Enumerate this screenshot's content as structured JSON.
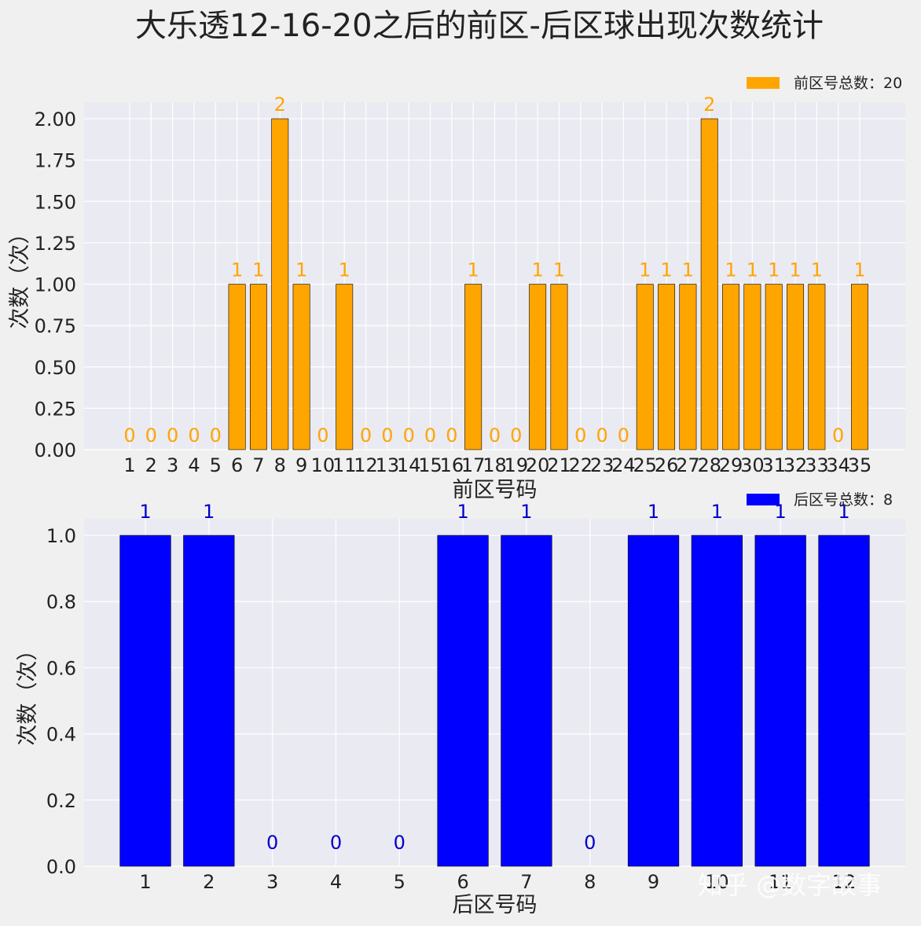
{
  "title": "大乐透12-16-20之后的前区-后区球出现次数统计",
  "watermark": "知乎 @数字故事",
  "colors": {
    "front_bar": "#FFA500",
    "back_bar": "#0000FF",
    "back_label": "#0000CD",
    "plot_bg": "#EAEAF2",
    "page_bg": "#F0F0F0",
    "grid": "#FFFFFF"
  },
  "chart_data": [
    {
      "type": "bar",
      "name": "front",
      "categories": [
        "1",
        "2",
        "3",
        "4",
        "5",
        "6",
        "7",
        "8",
        "9",
        "10",
        "11",
        "12",
        "13",
        "14",
        "15",
        "16",
        "17",
        "18",
        "19",
        "20",
        "21",
        "22",
        "23",
        "24",
        "25",
        "26",
        "27",
        "28",
        "29",
        "30",
        "31",
        "32",
        "33",
        "34",
        "35"
      ],
      "series": [
        {
          "name": "前区号总数：20",
          "values": [
            0,
            0,
            0,
            0,
            0,
            1,
            1,
            2,
            1,
            0,
            1,
            0,
            0,
            0,
            0,
            0,
            1,
            0,
            0,
            1,
            1,
            0,
            0,
            0,
            1,
            1,
            1,
            2,
            1,
            1,
            1,
            1,
            1,
            0,
            1
          ]
        }
      ],
      "xlabel": "前区号码",
      "ylabel": "次数（次）",
      "ylim": [
        0,
        2.1
      ],
      "yticks": [
        "0.00",
        "0.25",
        "0.50",
        "0.75",
        "1.00",
        "1.25",
        "1.50",
        "1.75",
        "2.00"
      ],
      "data_labels": true,
      "grid": true,
      "legend": "top-right"
    },
    {
      "type": "bar",
      "name": "back",
      "categories": [
        "1",
        "2",
        "3",
        "4",
        "5",
        "6",
        "7",
        "8",
        "9",
        "10",
        "11",
        "12"
      ],
      "series": [
        {
          "name": "后区号总数：8",
          "values": [
            1,
            1,
            0,
            0,
            0,
            1,
            1,
            0,
            1,
            1,
            1,
            1
          ]
        }
      ],
      "xlabel": "后区号码",
      "ylabel": "次数（次）",
      "ylim": [
        0,
        1.05
      ],
      "yticks": [
        "0.0",
        "0.2",
        "0.4",
        "0.6",
        "0.8",
        "1.0"
      ],
      "data_labels": true,
      "grid": true,
      "legend": "top-right"
    }
  ]
}
